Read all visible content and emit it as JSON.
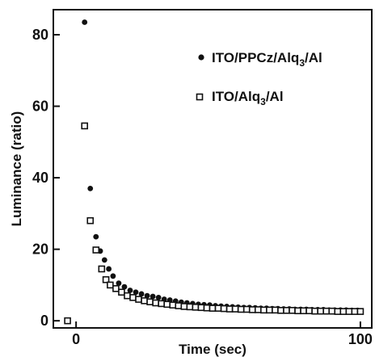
{
  "chart_data": {
    "type": "scatter",
    "xlabel": "Time (sec)",
    "ylabel": "Luminance (ratio)",
    "xlim": [
      -8,
      104
    ],
    "ylim": [
      -2,
      87
    ],
    "xticks": [
      0,
      100
    ],
    "xtick_labels": [
      "0",
      "100"
    ],
    "yticks": [
      0,
      20,
      40,
      60,
      80
    ],
    "ytick_labels": [
      "0",
      "20",
      "40",
      "60",
      "80"
    ],
    "grid": false,
    "legend_position": "top-right",
    "series": [
      {
        "name_parts": {
          "pre": "ITO/PPCz/Alq",
          "sub": "3",
          "post": "/Al"
        },
        "marker": "filled-circle",
        "color": "#111111",
        "points": [
          [
            3,
            83.5
          ],
          [
            5,
            37
          ],
          [
            7,
            23.5
          ],
          [
            8.5,
            19.5
          ],
          [
            10,
            17
          ],
          [
            11.5,
            14.5
          ],
          [
            13,
            12.5
          ],
          [
            15,
            10.5
          ],
          [
            17,
            9.5
          ],
          [
            19,
            8.5
          ],
          [
            21,
            8
          ],
          [
            23,
            7.5
          ],
          [
            25,
            7
          ],
          [
            27,
            6.8
          ],
          [
            29,
            6.5
          ],
          [
            31,
            6
          ],
          [
            33,
            5.8
          ],
          [
            35,
            5.5
          ],
          [
            37,
            5.2
          ],
          [
            39,
            5
          ],
          [
            41,
            4.8
          ],
          [
            43,
            4.6
          ],
          [
            45,
            4.5
          ],
          [
            47,
            4.4
          ],
          [
            49,
            4.2
          ],
          [
            51,
            4.1
          ],
          [
            53,
            4
          ],
          [
            55,
            3.9
          ],
          [
            57,
            3.8
          ],
          [
            59,
            3.7
          ],
          [
            61,
            3.7
          ],
          [
            63,
            3.6
          ],
          [
            65,
            3.5
          ],
          [
            67,
            3.5
          ],
          [
            69,
            3.4
          ],
          [
            71,
            3.4
          ],
          [
            73,
            3.3
          ],
          [
            75,
            3.3
          ],
          [
            77,
            3.2
          ],
          [
            79,
            3.2
          ],
          [
            81,
            3.2
          ],
          [
            83,
            3.1
          ],
          [
            85,
            3.1
          ],
          [
            87,
            3.1
          ],
          [
            89,
            3
          ],
          [
            91,
            3
          ],
          [
            93,
            3
          ],
          [
            95,
            3
          ],
          [
            97,
            2.9
          ],
          [
            99,
            2.9
          ]
        ]
      },
      {
        "name_parts": {
          "pre": "ITO/Alq",
          "sub": "3",
          "post": "/Al"
        },
        "marker": "open-square",
        "color": "#111111",
        "points": [
          [
            -3,
            0
          ],
          [
            3,
            54.5
          ],
          [
            5,
            28
          ],
          [
            7,
            19.8
          ],
          [
            9,
            14.5
          ],
          [
            10.5,
            11.5
          ],
          [
            12,
            10
          ],
          [
            14,
            9
          ],
          [
            16,
            8
          ],
          [
            18,
            7
          ],
          [
            20,
            6.5
          ],
          [
            22,
            6
          ],
          [
            24,
            5.6
          ],
          [
            26,
            5.3
          ],
          [
            28,
            5
          ],
          [
            30,
            4.8
          ],
          [
            32,
            4.6
          ],
          [
            34,
            4.4
          ],
          [
            36,
            4.2
          ],
          [
            38,
            4
          ],
          [
            40,
            3.9
          ],
          [
            42,
            3.8
          ],
          [
            44,
            3.7
          ],
          [
            46,
            3.6
          ],
          [
            48,
            3.5
          ],
          [
            50,
            3.5
          ],
          [
            52,
            3.4
          ],
          [
            54,
            3.3
          ],
          [
            56,
            3.3
          ],
          [
            58,
            3.2
          ],
          [
            60,
            3.2
          ],
          [
            62,
            3.1
          ],
          [
            64,
            3.1
          ],
          [
            66,
            3
          ],
          [
            68,
            3
          ],
          [
            70,
            3
          ],
          [
            72,
            2.9
          ],
          [
            74,
            2.9
          ],
          [
            76,
            2.9
          ],
          [
            78,
            2.8
          ],
          [
            80,
            2.8
          ],
          [
            82,
            2.8
          ],
          [
            84,
            2.7
          ],
          [
            86,
            2.7
          ],
          [
            88,
            2.7
          ],
          [
            90,
            2.7
          ],
          [
            92,
            2.6
          ],
          [
            94,
            2.6
          ],
          [
            96,
            2.6
          ],
          [
            98,
            2.6
          ],
          [
            100,
            2.6
          ]
        ]
      }
    ]
  }
}
